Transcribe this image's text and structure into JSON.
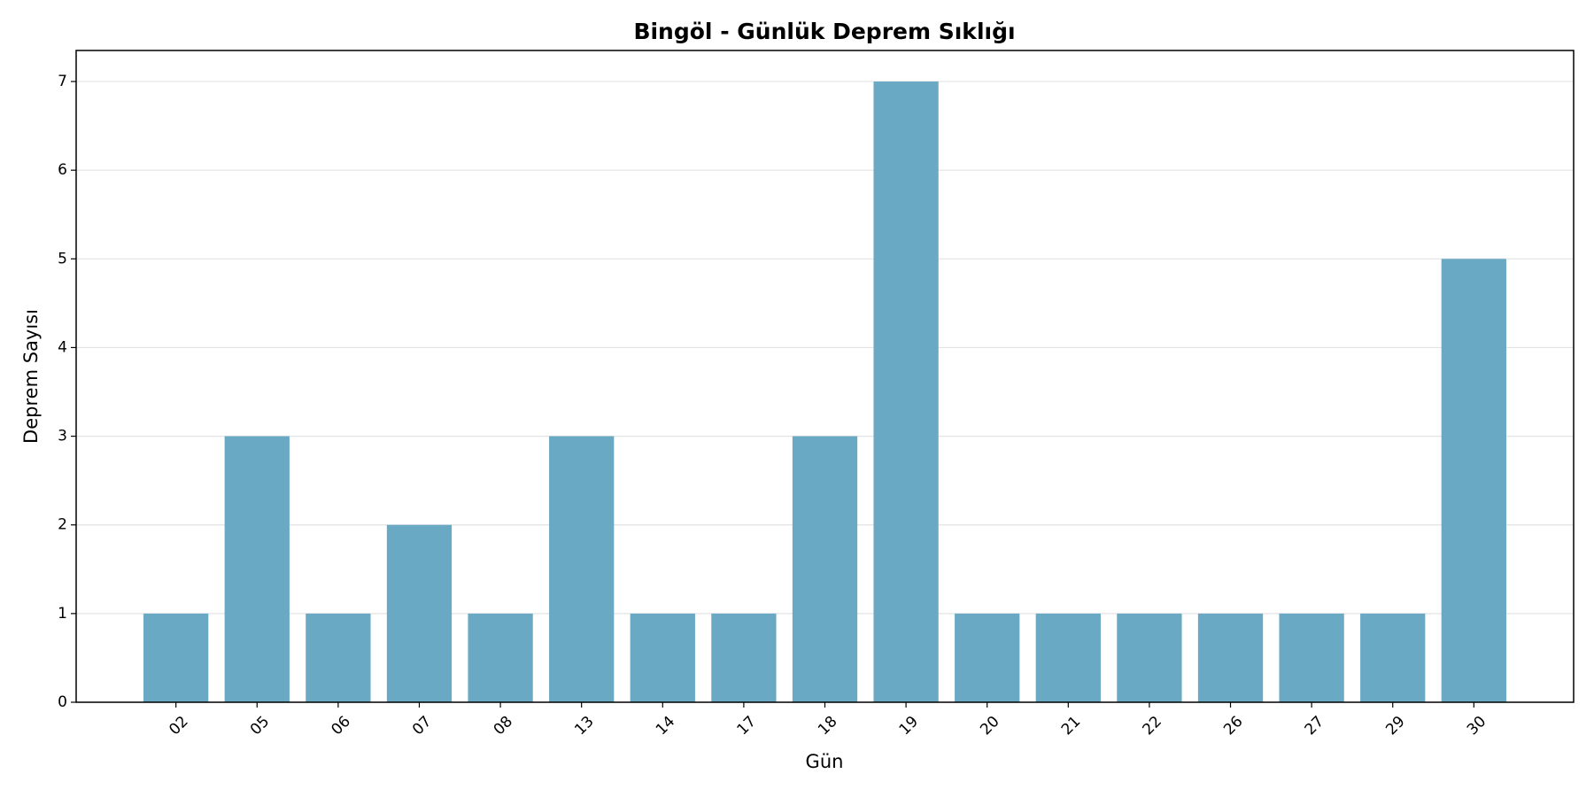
{
  "chart_data": {
    "type": "bar",
    "title": "Bingöl - Günlük Deprem Sıklığı",
    "x_label": "Gün",
    "y_label": "Deprem Sayısı",
    "categories": [
      "02",
      "05",
      "06",
      "07",
      "08",
      "13",
      "14",
      "17",
      "18",
      "19",
      "20",
      "21",
      "22",
      "26",
      "27",
      "29",
      "30"
    ],
    "values": [
      1,
      3,
      1,
      2,
      1,
      3,
      1,
      1,
      3,
      7,
      1,
      1,
      1,
      1,
      1,
      1,
      5
    ],
    "color": "#6aa9c4",
    "ylim": [
      0,
      7.35
    ],
    "yticks": [
      0,
      1,
      2,
      3,
      4,
      5,
      6,
      7
    ],
    "grid": true
  }
}
